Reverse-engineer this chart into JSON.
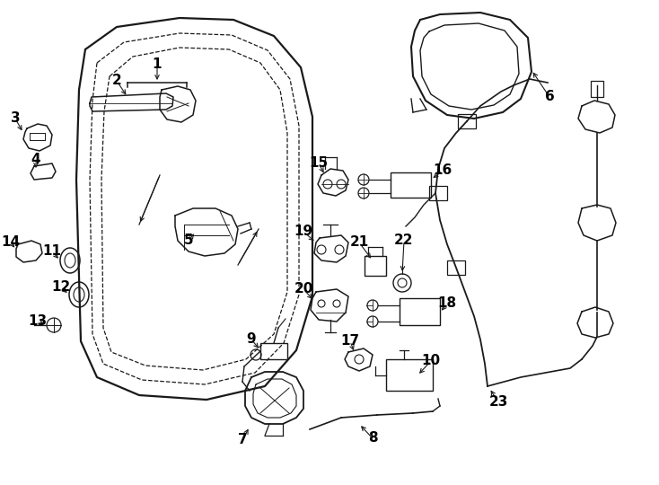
{
  "background_color": "#ffffff",
  "line_color": "#1a1a1a",
  "text_color": "#000000",
  "fig_width": 7.34,
  "fig_height": 5.4,
  "dpi": 100,
  "xlim": [
    0,
    734
  ],
  "ylim": [
    0,
    540
  ]
}
